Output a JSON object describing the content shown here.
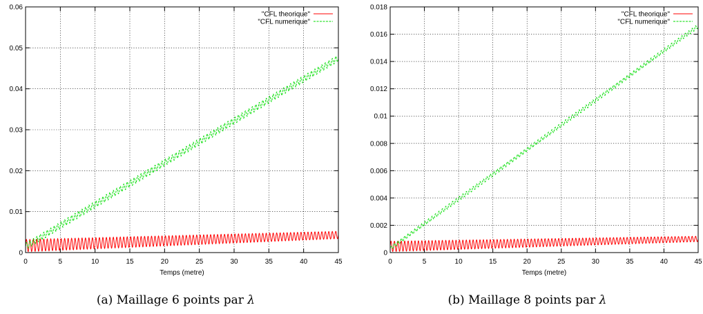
{
  "figures": [
    {
      "caption_label": "(a)",
      "caption_text": "Maillage 6 points par",
      "caption_symbol": "λ",
      "chart_data": {
        "type": "line",
        "xlabel": "Temps (metre)",
        "ylabel": "",
        "xlim": [
          0,
          45
        ],
        "ylim": [
          0,
          0.06
        ],
        "xticks": [
          "0",
          "5",
          "10",
          "15",
          "20",
          "25",
          "30",
          "35",
          "40",
          "45"
        ],
        "yticks": [
          "0",
          "0.01",
          "0.02",
          "0.03",
          "0.04",
          "0.05",
          "0.06"
        ],
        "grid": true,
        "legend_position": "top-right",
        "series": [
          {
            "name": "\"CFL theorique\"",
            "color": "#ff0000",
            "style": "solid",
            "shape": "oscillating",
            "baseline_start": 0.0017,
            "baseline_end": 0.0043,
            "amplitude_start": 0.0015,
            "amplitude_end": 0.0009,
            "period": 0.5
          },
          {
            "name": "\"CFL numerique\"",
            "color": "#00dd00",
            "style": "dashed",
            "shape": "oscillating",
            "baseline_start": 0.0015,
            "baseline_end": 0.0475,
            "amplitude_start": 0.0008,
            "amplitude_end": 0.0008,
            "period": 0.5
          }
        ]
      }
    },
    {
      "caption_label": "(b)",
      "caption_text": "Maillage 8 points par",
      "caption_symbol": "λ",
      "chart_data": {
        "type": "line",
        "xlabel": "Temps (metre)",
        "ylabel": "",
        "xlim": [
          0,
          45
        ],
        "ylim": [
          0,
          0.018
        ],
        "xticks": [
          "0",
          "5",
          "10",
          "15",
          "20",
          "25",
          "30",
          "35",
          "40",
          "45"
        ],
        "yticks": [
          "0",
          "0.002",
          "0.004",
          "0.006",
          "0.008",
          "0.01",
          "0.012",
          "0.014",
          "0.016",
          "0.018"
        ],
        "grid": true,
        "legend_position": "top-right",
        "series": [
          {
            "name": "\"CFL theorique\"",
            "color": "#ff0000",
            "style": "solid",
            "shape": "oscillating",
            "baseline_start": 0.00045,
            "baseline_end": 0.001,
            "amplitude_start": 0.00038,
            "amplitude_end": 0.0002,
            "period": 0.5
          },
          {
            "name": "\"CFL numerique\"",
            "color": "#00dd00",
            "style": "dashed",
            "shape": "oscillating",
            "baseline_start": 0.0003,
            "baseline_end": 0.0166,
            "amplitude_start": 0.00015,
            "amplitude_end": 0.00015,
            "period": 0.5
          }
        ]
      }
    }
  ]
}
